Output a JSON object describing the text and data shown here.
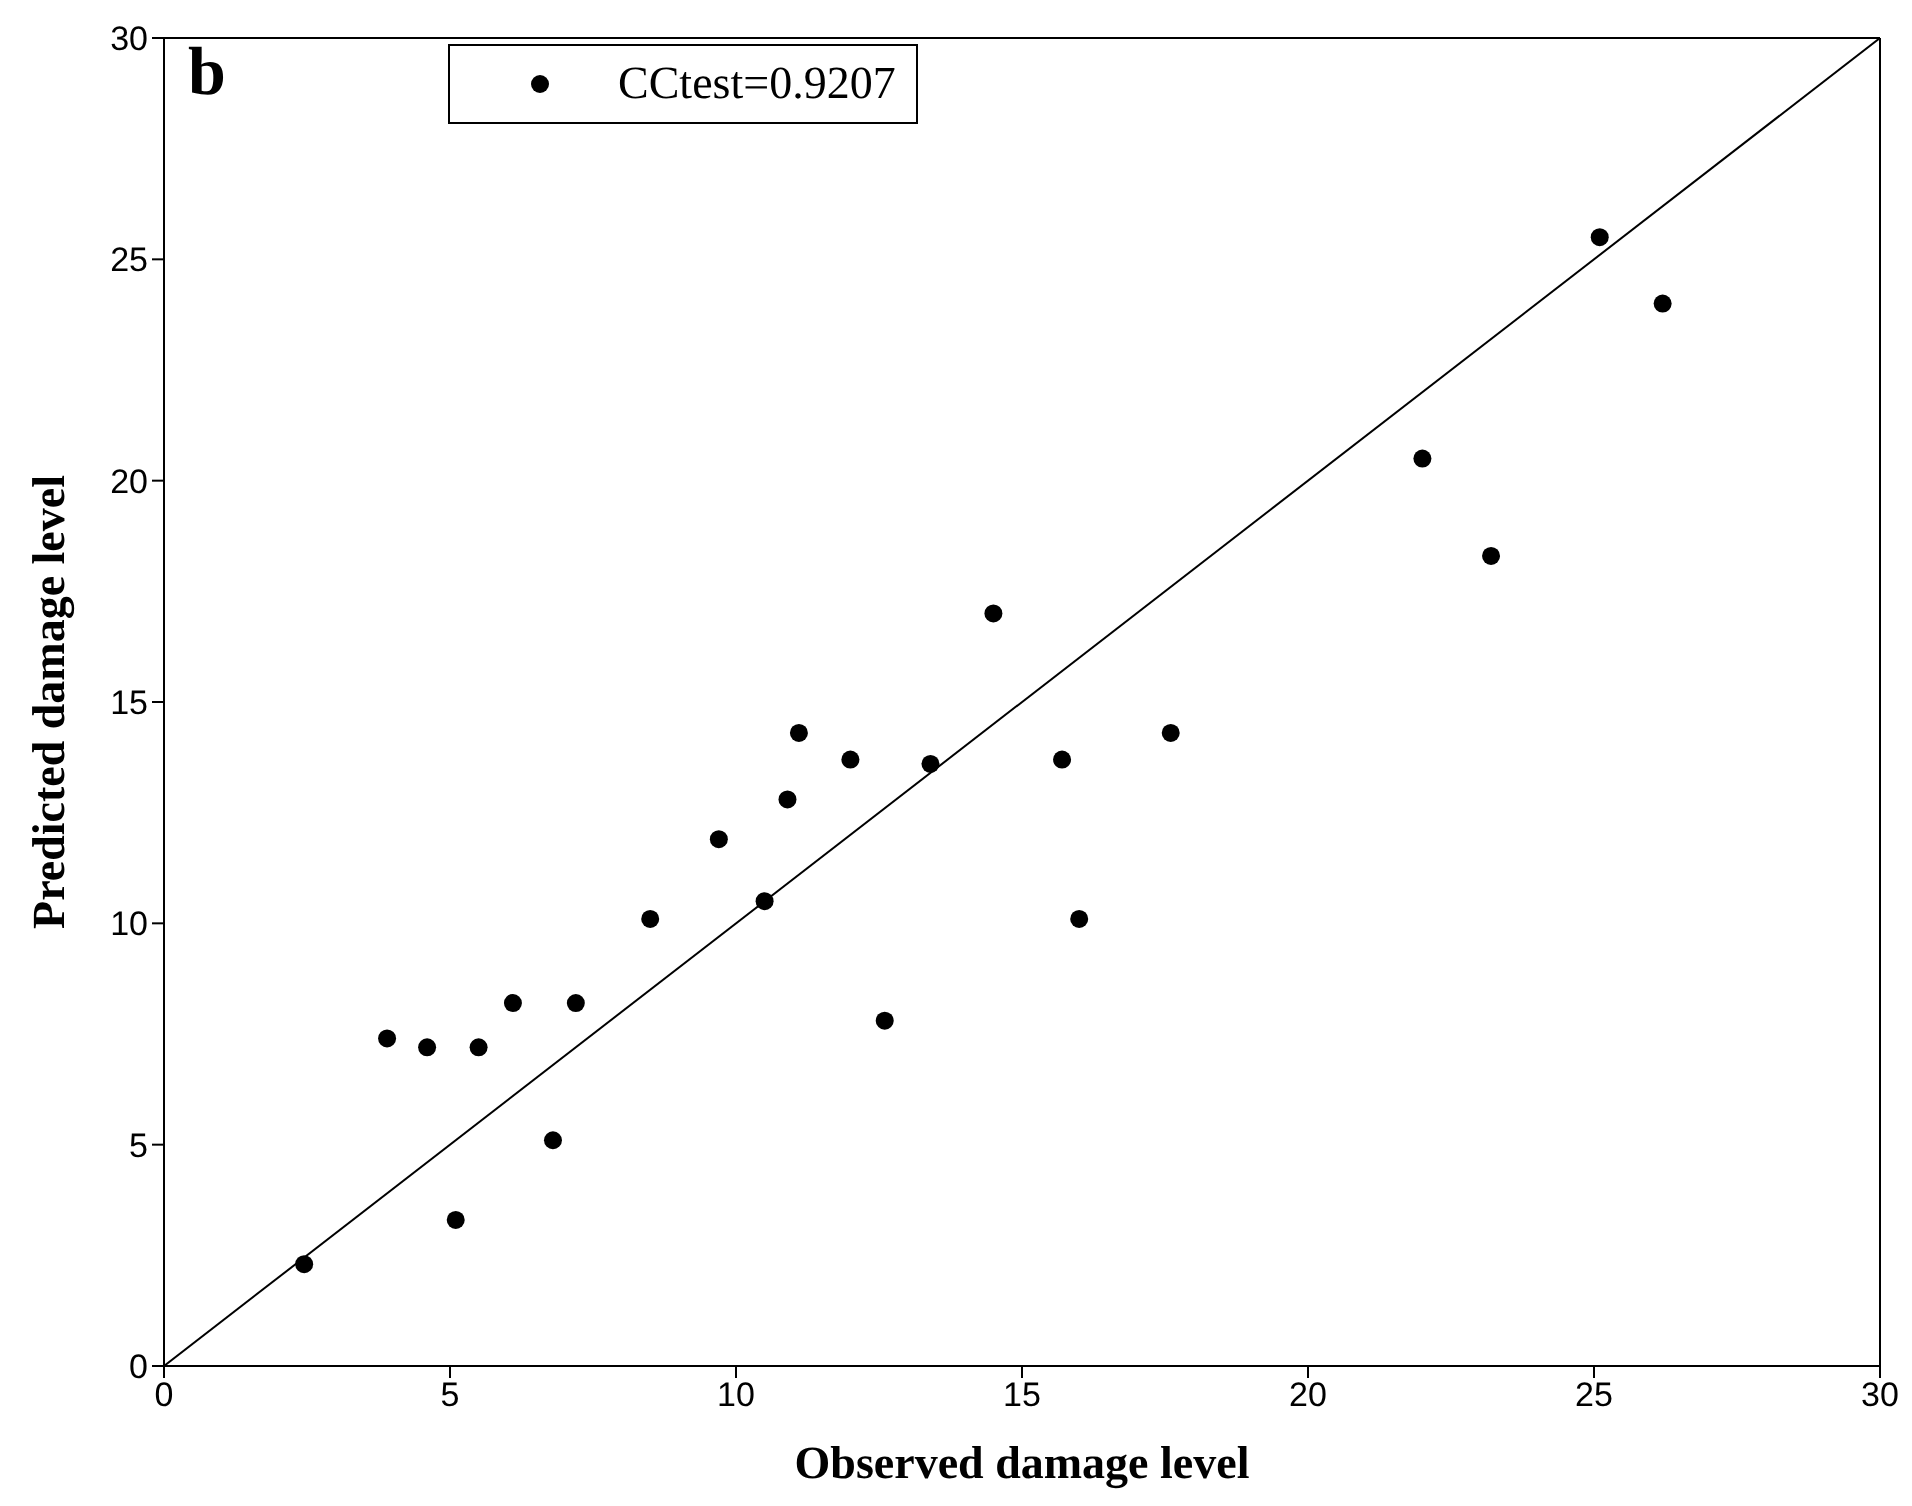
{
  "chart_data": {
    "type": "scatter",
    "xlabel": "Observed damage level",
    "ylabel": "Predicted damage level",
    "annotations": [
      "b"
    ],
    "xlim": [
      0,
      30
    ],
    "ylim": [
      0,
      30
    ],
    "xticks": [
      0,
      5,
      10,
      15,
      20,
      25,
      30
    ],
    "yticks": [
      0,
      5,
      10,
      15,
      20,
      25,
      30
    ],
    "legend": "top left",
    "series": [
      {
        "name": "CCtest=0.9207",
        "marker": "circle",
        "color": "#000000",
        "x": [
          2.45,
          3.9,
          4.6,
          5.5,
          5.1,
          6.1,
          7.2,
          6.8,
          8.5,
          9.7,
          10.5,
          10.9,
          11.1,
          12.0,
          12.6,
          13.4,
          14.5,
          15.7,
          16.0,
          17.6,
          22.0,
          23.2,
          25.1,
          26.2
        ],
        "values": [
          2.3,
          7.4,
          7.2,
          7.2,
          3.3,
          8.2,
          8.2,
          5.1,
          10.1,
          11.9,
          10.5,
          12.8,
          14.3,
          13.7,
          7.8,
          13.6,
          17.0,
          13.7,
          10.1,
          14.3,
          20.5,
          18.3,
          25.5,
          24.0
        ]
      },
      {
        "type": "line",
        "marker": "none",
        "line_style": "solid",
        "color": "#000000",
        "x": [
          0,
          30
        ],
        "values": [
          0,
          30
        ]
      }
    ]
  }
}
